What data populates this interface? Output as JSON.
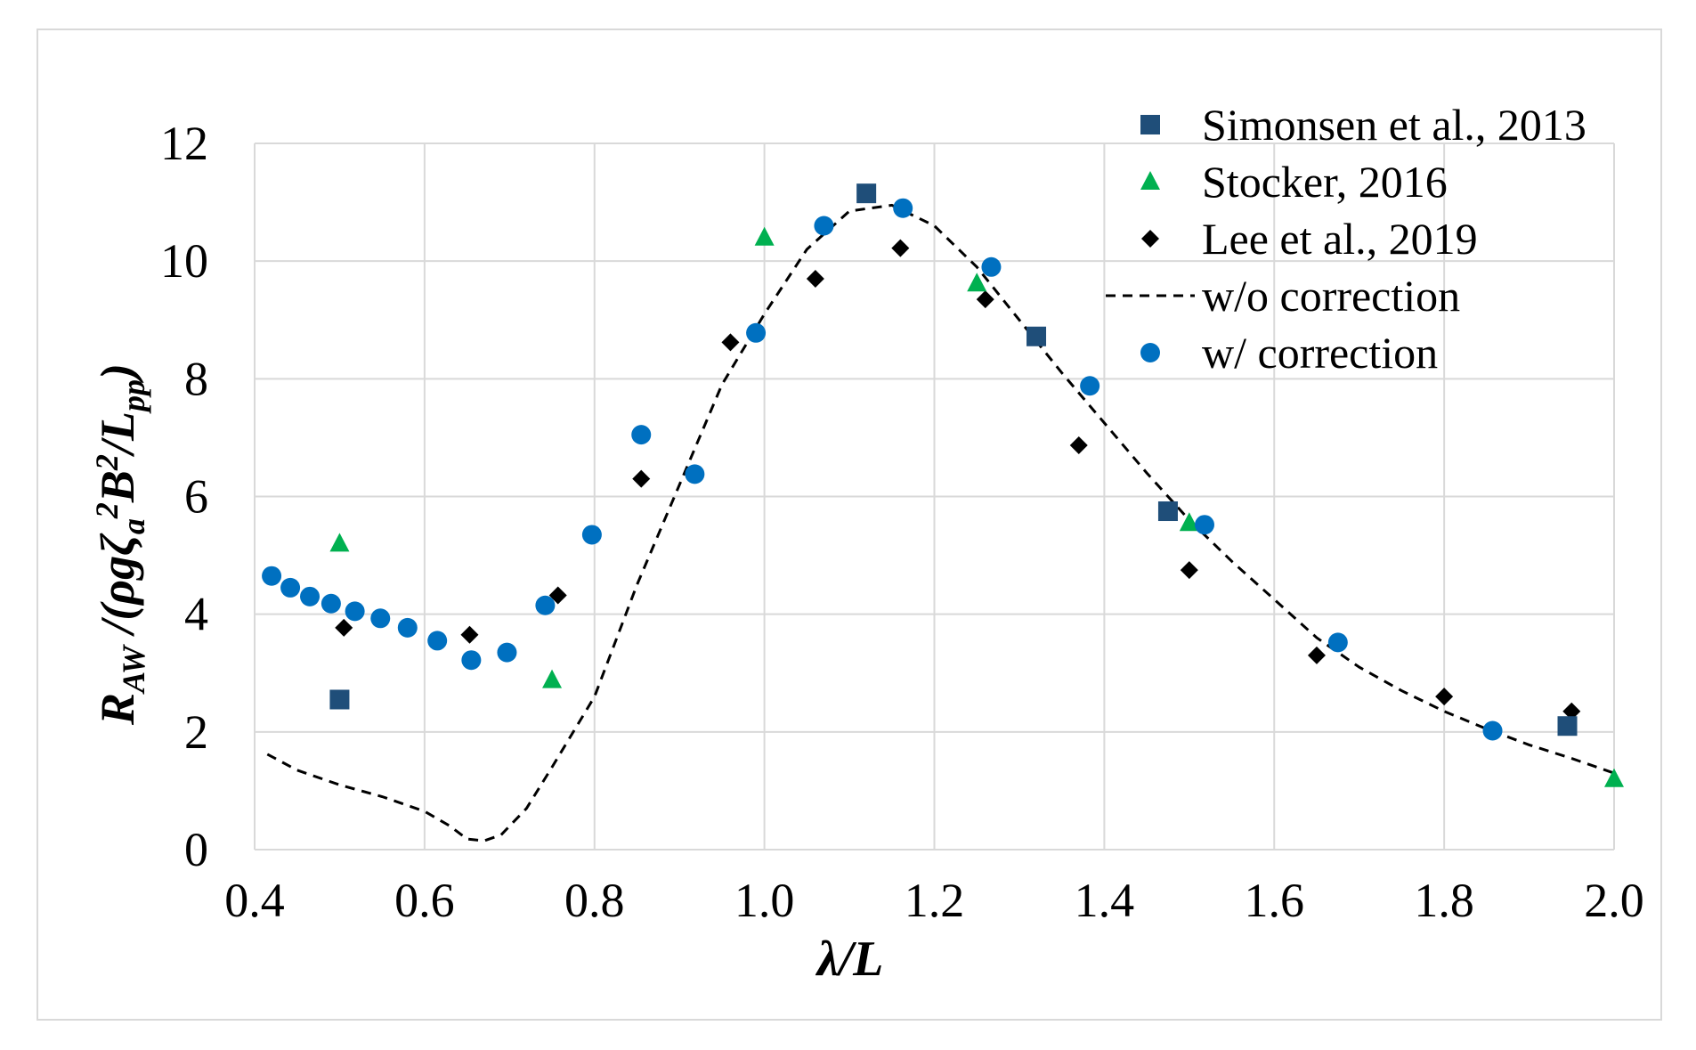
{
  "chart_data": {
    "type": "scatter",
    "xlabel": "λ/L",
    "ylabel": "R_AW /(ρgζ_a²B²/L_pp)",
    "xlim": [
      0.4,
      2.0
    ],
    "ylim": [
      0,
      12
    ],
    "xticks": [
      "0.4",
      "0.6",
      "0.8",
      "1.0",
      "1.2",
      "1.4",
      "1.6",
      "1.8",
      "2.0"
    ],
    "yticks": [
      "0",
      "2",
      "4",
      "6",
      "8",
      "10",
      "12"
    ],
    "grid": true,
    "legend_position": "top-right",
    "series": [
      {
        "name": "Simonsen et al., 2013",
        "marker": "square",
        "color": "#1f4e79",
        "points": [
          [
            0.5,
            2.55
          ],
          [
            1.12,
            11.15
          ],
          [
            1.32,
            8.72
          ],
          [
            1.475,
            5.75
          ],
          [
            1.945,
            2.1
          ]
        ]
      },
      {
        "name": "Stocker, 2016",
        "marker": "triangle",
        "color": "#00b050",
        "points": [
          [
            0.5,
            5.2
          ],
          [
            0.75,
            2.88
          ],
          [
            1.0,
            10.4
          ],
          [
            1.25,
            9.62
          ],
          [
            1.5,
            5.55
          ],
          [
            2.0,
            1.2
          ]
        ]
      },
      {
        "name": "Lee et al., 2019",
        "marker": "diamond",
        "color": "#000000",
        "points": [
          [
            0.505,
            3.77
          ],
          [
            0.653,
            3.65
          ],
          [
            0.757,
            4.32
          ],
          [
            0.855,
            6.3
          ],
          [
            0.96,
            8.62
          ],
          [
            1.06,
            9.7
          ],
          [
            1.16,
            10.22
          ],
          [
            1.26,
            9.35
          ],
          [
            1.37,
            6.87
          ],
          [
            1.5,
            4.75
          ],
          [
            1.65,
            3.3
          ],
          [
            1.8,
            2.6
          ],
          [
            1.95,
            2.35
          ]
        ]
      },
      {
        "name": "w/o correction",
        "marker": "dashed-line",
        "color": "#000000",
        "points": [
          [
            0.415,
            1.62
          ],
          [
            0.45,
            1.35
          ],
          [
            0.5,
            1.1
          ],
          [
            0.55,
            0.9
          ],
          [
            0.6,
            0.65
          ],
          [
            0.63,
            0.4
          ],
          [
            0.65,
            0.18
          ],
          [
            0.67,
            0.15
          ],
          [
            0.69,
            0.25
          ],
          [
            0.72,
            0.7
          ],
          [
            0.75,
            1.4
          ],
          [
            0.8,
            2.6
          ],
          [
            0.85,
            4.5
          ],
          [
            0.9,
            6.2
          ],
          [
            0.95,
            7.9
          ],
          [
            1.0,
            9.1
          ],
          [
            1.05,
            10.2
          ],
          [
            1.1,
            10.85
          ],
          [
            1.15,
            10.95
          ],
          [
            1.2,
            10.6
          ],
          [
            1.25,
            9.9
          ],
          [
            1.3,
            9.0
          ],
          [
            1.35,
            8.1
          ],
          [
            1.4,
            7.25
          ],
          [
            1.45,
            6.4
          ],
          [
            1.5,
            5.6
          ],
          [
            1.55,
            4.9
          ],
          [
            1.6,
            4.25
          ],
          [
            1.65,
            3.6
          ],
          [
            1.7,
            3.1
          ],
          [
            1.75,
            2.7
          ],
          [
            1.8,
            2.35
          ],
          [
            1.85,
            2.05
          ],
          [
            1.9,
            1.78
          ],
          [
            1.95,
            1.55
          ],
          [
            2.0,
            1.3
          ]
        ]
      },
      {
        "name": "w/ correction",
        "marker": "circle",
        "color": "#0070c0",
        "points": [
          [
            0.42,
            4.65
          ],
          [
            0.442,
            4.45
          ],
          [
            0.465,
            4.3
          ],
          [
            0.49,
            4.18
          ],
          [
            0.518,
            4.05
          ],
          [
            0.548,
            3.93
          ],
          [
            0.58,
            3.77
          ],
          [
            0.615,
            3.55
          ],
          [
            0.655,
            3.22
          ],
          [
            0.697,
            3.35
          ],
          [
            0.742,
            4.15
          ],
          [
            0.797,
            5.35
          ],
          [
            0.855,
            7.05
          ],
          [
            0.918,
            6.38
          ],
          [
            0.99,
            8.78
          ],
          [
            1.07,
            10.6
          ],
          [
            1.163,
            10.9
          ],
          [
            1.267,
            9.9
          ],
          [
            1.383,
            7.88
          ],
          [
            1.518,
            5.52
          ],
          [
            1.675,
            3.52
          ],
          [
            1.857,
            2.02
          ]
        ]
      }
    ]
  }
}
